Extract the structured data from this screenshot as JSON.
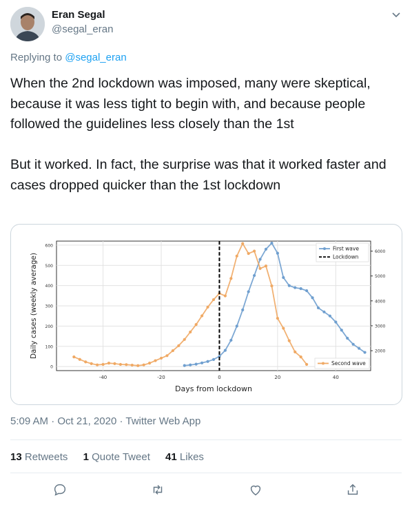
{
  "author": {
    "name": "Eran Segal",
    "handle": "@segal_eran"
  },
  "reply": {
    "prefix": "Replying to",
    "to": "@segal_eran"
  },
  "tweet": {
    "text": "When the 2nd lockdown was imposed, many were skeptical, because it was less tight to begin with, and because people followed the guidelines less closely than the 1st\n\nBut it worked. In fact, the surprise was that it worked faster and cases dropped quicker than the 1st lockdown"
  },
  "meta": {
    "time": "5:09 AM",
    "date": "Oct 21, 2020",
    "client": "Twitter Web App"
  },
  "stats": {
    "retweets": {
      "count": "13",
      "label": "Retweets"
    },
    "quotes": {
      "count": "1",
      "label": "Quote Tweet"
    },
    "likes": {
      "count": "41",
      "label": "Likes"
    }
  },
  "icons": [
    "chevron-down-icon",
    "reply-icon",
    "retweet-icon",
    "like-icon",
    "share-icon"
  ],
  "colors": {
    "accent": "#1da1f2",
    "first_wave": "#6f9fcf",
    "second_wave": "#f0a964"
  },
  "chart_data": {
    "type": "line",
    "xlabel": "Days from lockdown",
    "ylabel": "Daily cases (weekly average)",
    "xlim": [
      -56,
      52
    ],
    "xticks": [
      -40,
      -20,
      0,
      20,
      40
    ],
    "y_left_lim": [
      -20,
      620
    ],
    "y_left_ticks": [
      0,
      100,
      200,
      300,
      400,
      500,
      600
    ],
    "y_right_lim": [
      1200,
      6400
    ],
    "y_right_ticks": [
      2000,
      3000,
      4000,
      5000,
      6000
    ],
    "grid": true,
    "annotations": [
      {
        "type": "vline",
        "x": 0,
        "label": "Lockdown"
      }
    ],
    "legends": [
      {
        "placement": "top-right",
        "entries": [
          "First wave",
          "Lockdown"
        ]
      },
      {
        "placement": "bottom-right",
        "entries": [
          "Second wave"
        ]
      }
    ],
    "series": [
      {
        "name": "First wave",
        "axis": "left",
        "color": "#6f9fcf",
        "x": [
          -12,
          -10,
          -8,
          -6,
          -4,
          -2,
          0,
          2,
          4,
          6,
          8,
          10,
          12,
          14,
          16,
          18,
          20,
          22,
          24,
          26,
          28,
          30,
          32,
          34,
          36,
          38,
          40,
          42,
          44,
          46,
          48,
          50
        ],
        "y": [
          5,
          8,
          12,
          18,
          25,
          35,
          50,
          80,
          130,
          200,
          280,
          370,
          450,
          530,
          580,
          610,
          560,
          440,
          400,
          390,
          385,
          375,
          340,
          290,
          270,
          250,
          220,
          180,
          140,
          110,
          90,
          70
        ]
      },
      {
        "name": "Second wave",
        "axis": "right",
        "color": "#f0a964",
        "x": [
          -50,
          -48,
          -46,
          -44,
          -42,
          -40,
          -38,
          -36,
          -34,
          -32,
          -30,
          -28,
          -26,
          -24,
          -22,
          -20,
          -18,
          -16,
          -14,
          -12,
          -10,
          -8,
          -6,
          -4,
          -2,
          0,
          2,
          4,
          6,
          8,
          10,
          12,
          14,
          16,
          18,
          20,
          22,
          24,
          26,
          28,
          30
        ],
        "y": [
          1750,
          1650,
          1550,
          1480,
          1430,
          1450,
          1500,
          1480,
          1450,
          1440,
          1420,
          1400,
          1430,
          1500,
          1600,
          1700,
          1800,
          2000,
          2200,
          2450,
          2750,
          3050,
          3400,
          3750,
          4050,
          4300,
          4200,
          4900,
          5800,
          6300,
          5900,
          6000,
          5300,
          5400,
          4600,
          3300,
          2900,
          2400,
          1950,
          1750,
          1450
        ]
      }
    ]
  }
}
